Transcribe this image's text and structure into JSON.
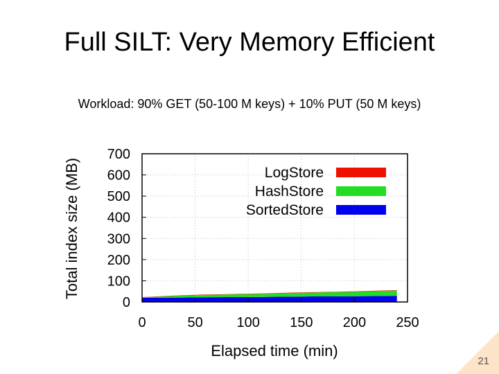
{
  "slide": {
    "title": "Full SILT: Very Memory Efficient",
    "subtitle": "Workload: 90% GET (50-100 M keys) + 10% PUT (50 M keys)",
    "page_number": "21"
  },
  "chart_data": {
    "type": "area",
    "stacked": true,
    "title": "",
    "xlabel": "Elapsed time (min)",
    "ylabel": "Total index size (MB)",
    "xlim": [
      0,
      250
    ],
    "ylim": [
      0,
      700
    ],
    "x_ticks": [
      0,
      50,
      100,
      150,
      200,
      250
    ],
    "y_ticks": [
      0,
      100,
      200,
      300,
      400,
      500,
      600,
      700
    ],
    "grid": true,
    "legend_position": "top-right",
    "x": [
      0,
      20,
      40,
      60,
      80,
      100,
      120,
      140,
      160,
      180,
      200,
      220,
      240
    ],
    "series": [
      {
        "name": "SortedStore",
        "color": "#0000ee",
        "values": [
          20,
          20,
          21,
          22,
          23,
          23,
          24,
          25,
          26,
          26,
          27,
          28,
          29
        ]
      },
      {
        "name": "HashStore",
        "color": "#22dd22",
        "values": [
          2,
          6,
          9,
          11,
          12,
          14,
          15,
          17,
          18,
          20,
          21,
          23,
          25
        ]
      },
      {
        "name": "LogStore",
        "color": "#ee1100",
        "values": [
          1,
          2,
          2,
          2,
          2,
          2,
          2,
          2,
          2,
          2,
          2,
          2,
          2
        ]
      }
    ],
    "legend_order": [
      "LogStore",
      "HashStore",
      "SortedStore"
    ]
  }
}
